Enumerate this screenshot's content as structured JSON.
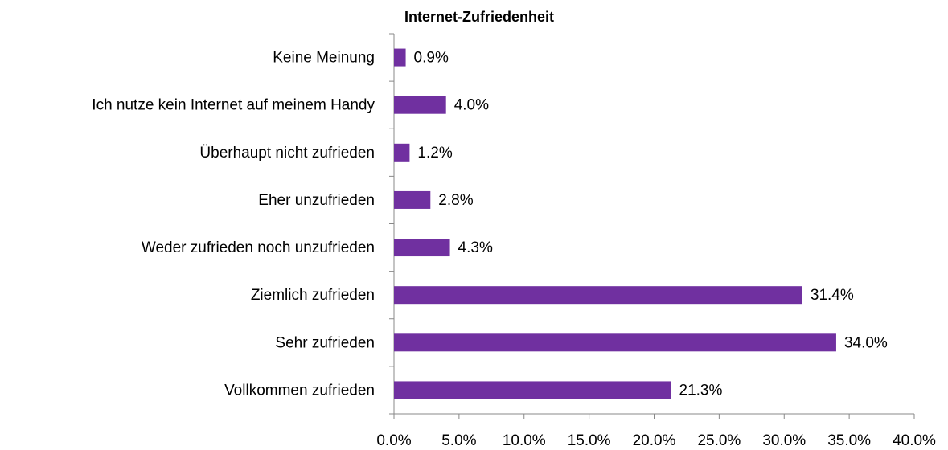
{
  "chart_data": {
    "type": "bar",
    "orientation": "horizontal",
    "title": "Internet-Zufriedenheit",
    "categories": [
      "Keine Meinung",
      "Ich nutze kein Internet auf meinem Handy",
      "Überhaupt nicht zufrieden",
      "Eher unzufrieden",
      "Weder zufrieden noch unzufrieden",
      "Ziemlich zufrieden",
      "Sehr zufrieden",
      "Vollkommen zufrieden"
    ],
    "values": [
      0.9,
      4.0,
      1.2,
      2.8,
      4.3,
      31.4,
      34.0,
      21.3
    ],
    "value_labels": [
      "0.9%",
      "4.0%",
      "1.2%",
      "2.8%",
      "4.3%",
      "31.4%",
      "34.0%",
      "21.3%"
    ],
    "color": "#7030a0",
    "xlim": [
      0,
      40
    ],
    "xticks": [
      {
        "value": 0,
        "label": "0.0%"
      },
      {
        "value": 5,
        "label": "5.0%"
      },
      {
        "value": 10,
        "label": "10.0%"
      },
      {
        "value": 15,
        "label": "15.0%"
      },
      {
        "value": 20,
        "label": "20.0%"
      },
      {
        "value": 25,
        "label": "25.0%"
      },
      {
        "value": 30,
        "label": "30.0%"
      },
      {
        "value": 35,
        "label": "35.0%"
      },
      {
        "value": 40,
        "label": "40.0%"
      }
    ],
    "grid": false
  }
}
